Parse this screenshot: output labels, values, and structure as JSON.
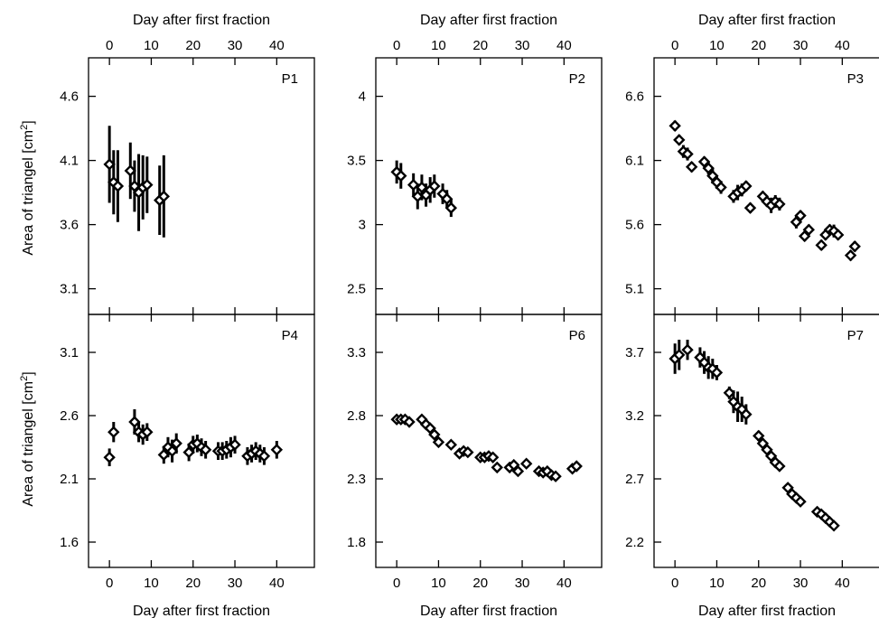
{
  "chart_data": {
    "type": "scatter",
    "xlabel": "Day after first fraction",
    "ylabel": "Area of triangel [cm²]",
    "ylabel_main": "Area of triangel [cm",
    "ylabel_sup": "2",
    "ylabel_close": "]",
    "xlim": [
      -5,
      49
    ],
    "xticks": [
      0,
      10,
      20,
      30,
      40
    ],
    "marker": "open-diamond-with-error-bars",
    "panels": [
      {
        "label": "P1",
        "ylim": [
          2.9,
          4.9
        ],
        "yticks": [
          3.1,
          3.6,
          4.1,
          4.6
        ],
        "points": [
          {
            "x": 0,
            "y": 4.07,
            "err": 0.3
          },
          {
            "x": 1,
            "y": 3.93,
            "err": 0.25
          },
          {
            "x": 2,
            "y": 3.9,
            "err": 0.28
          },
          {
            "x": 5,
            "y": 4.02,
            "err": 0.22
          },
          {
            "x": 6,
            "y": 3.9,
            "err": 0.2
          },
          {
            "x": 7,
            "y": 3.85,
            "err": 0.3
          },
          {
            "x": 8,
            "y": 3.89,
            "err": 0.25
          },
          {
            "x": 9,
            "y": 3.91,
            "err": 0.22
          },
          {
            "x": 12,
            "y": 3.79,
            "err": 0.27
          },
          {
            "x": 13,
            "y": 3.82,
            "err": 0.32
          }
        ]
      },
      {
        "label": "P2",
        "ylim": [
          2.3,
          4.3
        ],
        "yticks": [
          2.5,
          3,
          3.5,
          4
        ],
        "points": [
          {
            "x": 0,
            "y": 3.41,
            "err": 0.09
          },
          {
            "x": 1,
            "y": 3.38,
            "err": 0.1
          },
          {
            "x": 4,
            "y": 3.31,
            "err": 0.09
          },
          {
            "x": 5,
            "y": 3.22,
            "err": 0.1
          },
          {
            "x": 6,
            "y": 3.29,
            "err": 0.1
          },
          {
            "x": 7,
            "y": 3.23,
            "err": 0.09
          },
          {
            "x": 8,
            "y": 3.27,
            "err": 0.1
          },
          {
            "x": 9,
            "y": 3.3,
            "err": 0.09
          },
          {
            "x": 11,
            "y": 3.24,
            "err": 0.08
          },
          {
            "x": 12,
            "y": 3.2,
            "err": 0.07
          },
          {
            "x": 13,
            "y": 3.13,
            "err": 0.07
          }
        ]
      },
      {
        "label": "P3",
        "ylim": [
          4.9,
          6.9
        ],
        "yticks": [
          5.1,
          5.6,
          6.1,
          6.6
        ],
        "points": [
          {
            "x": 0,
            "y": 6.37,
            "err": 0.04
          },
          {
            "x": 1,
            "y": 6.26,
            "err": 0.04
          },
          {
            "x": 2,
            "y": 6.17,
            "err": 0.05
          },
          {
            "x": 3,
            "y": 6.15,
            "err": 0.05
          },
          {
            "x": 4,
            "y": 6.05,
            "err": 0.04
          },
          {
            "x": 7,
            "y": 6.09,
            "err": 0.04
          },
          {
            "x": 8,
            "y": 6.04,
            "err": 0.05
          },
          {
            "x": 9,
            "y": 5.98,
            "err": 0.06
          },
          {
            "x": 10,
            "y": 5.93,
            "err": 0.05
          },
          {
            "x": 11,
            "y": 5.89,
            "err": 0.05
          },
          {
            "x": 14,
            "y": 5.82,
            "err": 0.05
          },
          {
            "x": 15,
            "y": 5.85,
            "err": 0.06
          },
          {
            "x": 16,
            "y": 5.87,
            "err": 0.05
          },
          {
            "x": 17,
            "y": 5.9,
            "err": 0.04
          },
          {
            "x": 18,
            "y": 5.73,
            "err": 0.04
          },
          {
            "x": 21,
            "y": 5.82,
            "err": 0.04
          },
          {
            "x": 22,
            "y": 5.78,
            "err": 0.04
          },
          {
            "x": 23,
            "y": 5.75,
            "err": 0.06
          },
          {
            "x": 24,
            "y": 5.78,
            "err": 0.05
          },
          {
            "x": 25,
            "y": 5.76,
            "err": 0.05
          },
          {
            "x": 29,
            "y": 5.62,
            "err": 0.05
          },
          {
            "x": 30,
            "y": 5.67,
            "err": 0.04
          },
          {
            "x": 31,
            "y": 5.51,
            "err": 0.04
          },
          {
            "x": 32,
            "y": 5.56,
            "err": 0.04
          },
          {
            "x": 35,
            "y": 5.44,
            "err": 0.04
          },
          {
            "x": 36,
            "y": 5.52,
            "err": 0.04
          },
          {
            "x": 37,
            "y": 5.56,
            "err": 0.04
          },
          {
            "x": 38,
            "y": 5.55,
            "err": 0.05
          },
          {
            "x": 39,
            "y": 5.52,
            "err": 0.04
          },
          {
            "x": 42,
            "y": 5.36,
            "err": 0.04
          },
          {
            "x": 43,
            "y": 5.43,
            "err": 0.04
          }
        ]
      },
      {
        "label": "P4",
        "ylim": [
          1.4,
          3.4
        ],
        "yticks": [
          1.6,
          2.1,
          2.6,
          3.1
        ],
        "points": [
          {
            "x": 0,
            "y": 2.27,
            "err": 0.07
          },
          {
            "x": 1,
            "y": 2.47,
            "err": 0.08
          },
          {
            "x": 6,
            "y": 2.55,
            "err": 0.1
          },
          {
            "x": 7,
            "y": 2.47,
            "err": 0.08
          },
          {
            "x": 8,
            "y": 2.45,
            "err": 0.08
          },
          {
            "x": 9,
            "y": 2.47,
            "err": 0.07
          },
          {
            "x": 13,
            "y": 2.29,
            "err": 0.07
          },
          {
            "x": 14,
            "y": 2.35,
            "err": 0.08
          },
          {
            "x": 15,
            "y": 2.32,
            "err": 0.09
          },
          {
            "x": 16,
            "y": 2.38,
            "err": 0.08
          },
          {
            "x": 19,
            "y": 2.31,
            "err": 0.07
          },
          {
            "x": 20,
            "y": 2.37,
            "err": 0.07
          },
          {
            "x": 21,
            "y": 2.38,
            "err": 0.07
          },
          {
            "x": 22,
            "y": 2.35,
            "err": 0.07
          },
          {
            "x": 23,
            "y": 2.33,
            "err": 0.07
          },
          {
            "x": 26,
            "y": 2.32,
            "err": 0.07
          },
          {
            "x": 27,
            "y": 2.32,
            "err": 0.07
          },
          {
            "x": 28,
            "y": 2.33,
            "err": 0.07
          },
          {
            "x": 29,
            "y": 2.35,
            "err": 0.08
          },
          {
            "x": 30,
            "y": 2.37,
            "err": 0.07
          },
          {
            "x": 33,
            "y": 2.28,
            "err": 0.07
          },
          {
            "x": 34,
            "y": 2.3,
            "err": 0.07
          },
          {
            "x": 35,
            "y": 2.32,
            "err": 0.07
          },
          {
            "x": 36,
            "y": 2.3,
            "err": 0.07
          },
          {
            "x": 37,
            "y": 2.28,
            "err": 0.07
          },
          {
            "x": 40,
            "y": 2.33,
            "err": 0.07
          }
        ]
      },
      {
        "label": "P6",
        "ylim": [
          1.6,
          3.6
        ],
        "yticks": [
          1.8,
          2.3,
          2.8,
          3.3
        ],
        "points": [
          {
            "x": 0,
            "y": 2.77,
            "err": 0.02
          },
          {
            "x": 1,
            "y": 2.77,
            "err": 0.02
          },
          {
            "x": 2,
            "y": 2.77,
            "err": 0.02
          },
          {
            "x": 3,
            "y": 2.75,
            "err": 0.02
          },
          {
            "x": 6,
            "y": 2.77,
            "err": 0.03
          },
          {
            "x": 7,
            "y": 2.73,
            "err": 0.03
          },
          {
            "x": 8,
            "y": 2.7,
            "err": 0.03
          },
          {
            "x": 9,
            "y": 2.65,
            "err": 0.03
          },
          {
            "x": 10,
            "y": 2.59,
            "err": 0.02
          },
          {
            "x": 13,
            "y": 2.57,
            "err": 0.02
          },
          {
            "x": 15,
            "y": 2.5,
            "err": 0.02
          },
          {
            "x": 16,
            "y": 2.52,
            "err": 0.02
          },
          {
            "x": 17,
            "y": 2.51,
            "err": 0.02
          },
          {
            "x": 20,
            "y": 2.47,
            "err": 0.02
          },
          {
            "x": 21,
            "y": 2.47,
            "err": 0.02
          },
          {
            "x": 22,
            "y": 2.48,
            "err": 0.02
          },
          {
            "x": 23,
            "y": 2.47,
            "err": 0.02
          },
          {
            "x": 24,
            "y": 2.39,
            "err": 0.02
          },
          {
            "x": 27,
            "y": 2.39,
            "err": 0.02
          },
          {
            "x": 28,
            "y": 2.41,
            "err": 0.02
          },
          {
            "x": 29,
            "y": 2.36,
            "err": 0.02
          },
          {
            "x": 31,
            "y": 2.42,
            "err": 0.02
          },
          {
            "x": 34,
            "y": 2.36,
            "err": 0.02
          },
          {
            "x": 35,
            "y": 2.35,
            "err": 0.02
          },
          {
            "x": 36,
            "y": 2.36,
            "err": 0.02
          },
          {
            "x": 37,
            "y": 2.33,
            "err": 0.02
          },
          {
            "x": 38,
            "y": 2.32,
            "err": 0.02
          },
          {
            "x": 42,
            "y": 2.38,
            "err": 0.02
          },
          {
            "x": 43,
            "y": 2.4,
            "err": 0.02
          }
        ]
      },
      {
        "label": "P7",
        "ylim": [
          2.0,
          4.0
        ],
        "yticks": [
          2.2,
          2.7,
          3.2,
          3.7
        ],
        "points": [
          {
            "x": 0,
            "y": 3.65,
            "err": 0.12
          },
          {
            "x": 1,
            "y": 3.68,
            "err": 0.12
          },
          {
            "x": 3,
            "y": 3.72,
            "err": 0.08
          },
          {
            "x": 6,
            "y": 3.66,
            "err": 0.08
          },
          {
            "x": 7,
            "y": 3.62,
            "err": 0.09
          },
          {
            "x": 8,
            "y": 3.58,
            "err": 0.09
          },
          {
            "x": 9,
            "y": 3.57,
            "err": 0.08
          },
          {
            "x": 10,
            "y": 3.54,
            "err": 0.06
          },
          {
            "x": 13,
            "y": 3.38,
            "err": 0.05
          },
          {
            "x": 14,
            "y": 3.31,
            "err": 0.09
          },
          {
            "x": 15,
            "y": 3.27,
            "err": 0.12
          },
          {
            "x": 16,
            "y": 3.25,
            "err": 0.1
          },
          {
            "x": 17,
            "y": 3.21,
            "err": 0.08
          },
          {
            "x": 20,
            "y": 3.04,
            "err": 0.04
          },
          {
            "x": 21,
            "y": 2.98,
            "err": 0.04
          },
          {
            "x": 22,
            "y": 2.93,
            "err": 0.04
          },
          {
            "x": 23,
            "y": 2.88,
            "err": 0.04
          },
          {
            "x": 24,
            "y": 2.83,
            "err": 0.04
          },
          {
            "x": 25,
            "y": 2.8,
            "err": 0.03
          },
          {
            "x": 27,
            "y": 2.63,
            "err": 0.03
          },
          {
            "x": 28,
            "y": 2.58,
            "err": 0.03
          },
          {
            "x": 29,
            "y": 2.55,
            "err": 0.03
          },
          {
            "x": 30,
            "y": 2.52,
            "err": 0.03
          },
          {
            "x": 34,
            "y": 2.44,
            "err": 0.02
          },
          {
            "x": 35,
            "y": 2.42,
            "err": 0.02
          },
          {
            "x": 36,
            "y": 2.39,
            "err": 0.02
          },
          {
            "x": 37,
            "y": 2.36,
            "err": 0.02
          },
          {
            "x": 38,
            "y": 2.33,
            "err": 0.02
          }
        ]
      }
    ]
  }
}
